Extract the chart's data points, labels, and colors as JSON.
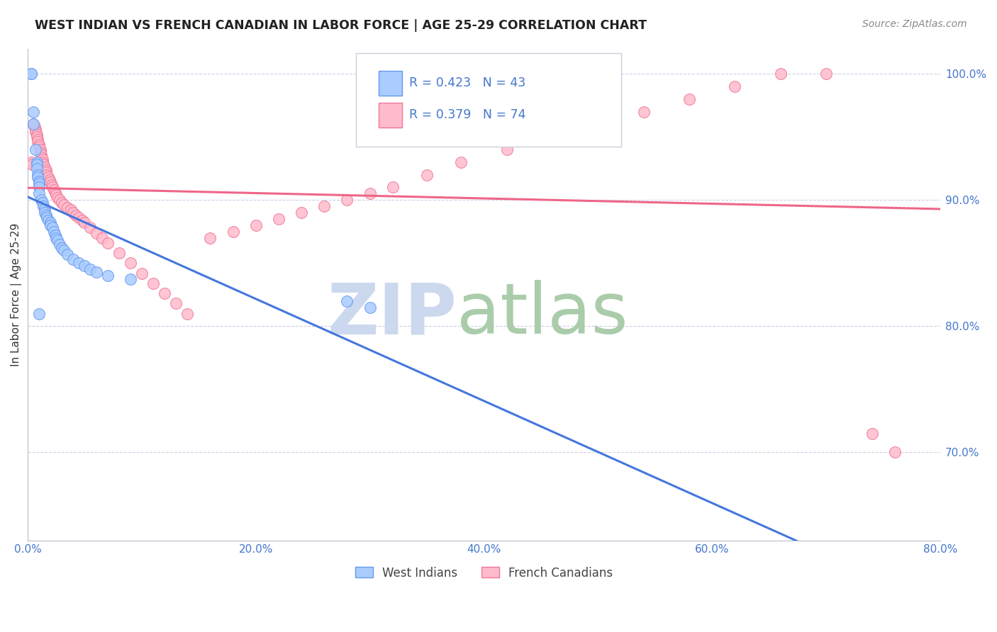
{
  "title": "WEST INDIAN VS FRENCH CANADIAN IN LABOR FORCE | AGE 25-29 CORRELATION CHART",
  "source": "Source: ZipAtlas.com",
  "ylabel": "In Labor Force | Age 25-29",
  "xlim": [
    0.0,
    0.8
  ],
  "ylim": [
    0.63,
    1.02
  ],
  "ytick_labels": [
    "70.0%",
    "80.0%",
    "90.0%",
    "100.0%"
  ],
  "ytick_values": [
    0.7,
    0.8,
    0.9,
    1.0
  ],
  "xtick_labels": [
    "0.0%",
    "20.0%",
    "40.0%",
    "60.0%",
    "80.0%"
  ],
  "xtick_values": [
    0.0,
    0.2,
    0.4,
    0.6,
    0.8
  ],
  "west_indian_color": "#aaccff",
  "french_canadian_color": "#ffbbcc",
  "west_indian_edge_color": "#6699ee",
  "french_canadian_edge_color": "#ee7799",
  "west_indian_line_color": "#4477dd",
  "french_canadian_line_color": "#ee6688",
  "west_indian_R": 0.423,
  "west_indian_N": 43,
  "french_canadian_R": 0.379,
  "french_canadian_N": 74,
  "legend_box_color": "#f5f5ff",
  "legend_box_edge": "#ccccdd",
  "tick_color": "#4477cc",
  "title_color": "#222222",
  "source_color": "#888888",
  "west_indian_x": [
    0.003,
    0.003,
    0.005,
    0.005,
    0.007,
    0.008,
    0.008,
    0.008,
    0.009,
    0.009,
    0.01,
    0.01,
    0.01,
    0.01,
    0.012,
    0.013,
    0.014,
    0.015,
    0.015,
    0.016,
    0.017,
    0.018,
    0.02,
    0.02,
    0.022,
    0.023,
    0.024,
    0.025,
    0.026,
    0.028,
    0.03,
    0.032,
    0.035,
    0.04,
    0.045,
    0.05,
    0.055,
    0.06,
    0.07,
    0.09,
    0.01,
    0.28,
    0.3
  ],
  "west_indian_y": [
    1.0,
    1.0,
    0.97,
    0.96,
    0.94,
    0.93,
    0.928,
    0.925,
    0.92,
    0.918,
    0.915,
    0.913,
    0.91,
    0.905,
    0.9,
    0.898,
    0.895,
    0.893,
    0.89,
    0.888,
    0.886,
    0.884,
    0.882,
    0.88,
    0.878,
    0.875,
    0.872,
    0.87,
    0.868,
    0.865,
    0.862,
    0.86,
    0.857,
    0.853,
    0.85,
    0.848,
    0.845,
    0.843,
    0.84,
    0.837,
    0.81,
    0.82,
    0.815
  ],
  "french_canadian_x": [
    0.003,
    0.004,
    0.005,
    0.006,
    0.007,
    0.007,
    0.008,
    0.008,
    0.009,
    0.009,
    0.01,
    0.01,
    0.011,
    0.011,
    0.012,
    0.012,
    0.013,
    0.013,
    0.014,
    0.015,
    0.016,
    0.016,
    0.017,
    0.018,
    0.019,
    0.02,
    0.021,
    0.022,
    0.023,
    0.024,
    0.025,
    0.026,
    0.028,
    0.03,
    0.032,
    0.035,
    0.038,
    0.04,
    0.042,
    0.045,
    0.048,
    0.05,
    0.055,
    0.06,
    0.065,
    0.07,
    0.08,
    0.09,
    0.1,
    0.11,
    0.12,
    0.13,
    0.14,
    0.16,
    0.18,
    0.2,
    0.22,
    0.24,
    0.26,
    0.28,
    0.3,
    0.32,
    0.35,
    0.38,
    0.42,
    0.46,
    0.5,
    0.54,
    0.58,
    0.62,
    0.66,
    0.7,
    0.74,
    0.76
  ],
  "french_canadian_y": [
    0.93,
    0.928,
    0.96,
    0.958,
    0.956,
    0.954,
    0.952,
    0.95,
    0.948,
    0.946,
    0.944,
    0.942,
    0.94,
    0.938,
    0.936,
    0.934,
    0.932,
    0.93,
    0.928,
    0.926,
    0.924,
    0.922,
    0.92,
    0.918,
    0.916,
    0.914,
    0.912,
    0.91,
    0.908,
    0.906,
    0.904,
    0.902,
    0.9,
    0.898,
    0.896,
    0.894,
    0.892,
    0.89,
    0.888,
    0.886,
    0.884,
    0.882,
    0.878,
    0.874,
    0.87,
    0.866,
    0.858,
    0.85,
    0.842,
    0.834,
    0.826,
    0.818,
    0.81,
    0.87,
    0.875,
    0.88,
    0.885,
    0.89,
    0.895,
    0.9,
    0.905,
    0.91,
    0.92,
    0.93,
    0.94,
    0.95,
    0.96,
    0.97,
    0.98,
    0.99,
    1.0,
    1.0,
    0.715,
    0.7
  ]
}
